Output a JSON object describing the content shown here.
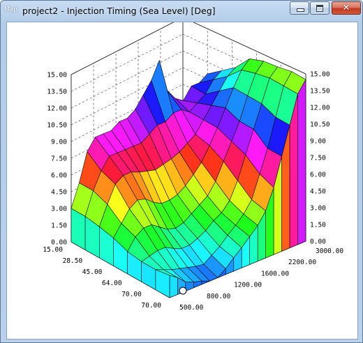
{
  "window": {
    "icon_label": "Map",
    "title": "project2 - Injection Timing (Sea Level) [Deg]",
    "controls": {
      "minimize": "minimize-icon",
      "maximize": "maximize-icon",
      "close": "close-icon"
    }
  },
  "chart_data": {
    "type": "surface",
    "z_ticks": [
      "0.00",
      "1.50",
      "3.00",
      "4.50",
      "6.00",
      "7.50",
      "9.00",
      "10.50",
      "12.00",
      "13.50",
      "15.00"
    ],
    "load_ticks": [
      "15.00",
      "28.50",
      "45.00",
      "64.00",
      "70.00",
      "70.00"
    ],
    "rpm_ticks": [
      "500.00",
      "800.00",
      "1200.00",
      "1600.00",
      "2200.00",
      "3000.00"
    ],
    "zlim": [
      0,
      15
    ],
    "grid": true,
    "colormap": "hue: blue (low) to magenta (high)",
    "z": [
      [
        3.0,
        5.0,
        7.5,
        8.5,
        8.5,
        8.5,
        9.0,
        9.0,
        9.5,
        10.5,
        11.5,
        13.0,
        10.0,
        9.0,
        8.5,
        9.5,
        9.5,
        10.0
      ],
      [
        3.0,
        5.0,
        6.5,
        7.5,
        7.5,
        7.5,
        7.5,
        7.5,
        8.0,
        8.5,
        8.5,
        9.0,
        9.0,
        8.5,
        9.0,
        9.5,
        10.5,
        11.0
      ],
      [
        2.8,
        4.5,
        6.0,
        6.5,
        6.5,
        6.2,
        6.0,
        5.8,
        6.0,
        6.2,
        6.5,
        7.0,
        7.5,
        8.5,
        9.5,
        10.5,
        11.5,
        12.0
      ],
      [
        2.5,
        3.5,
        4.5,
        5.0,
        4.8,
        4.2,
        3.8,
        3.8,
        4.0,
        4.5,
        5.2,
        6.0,
        7.2,
        8.5,
        10.0,
        11.5,
        12.8,
        13.5
      ],
      [
        2.0,
        3.0,
        3.5,
        3.5,
        3.0,
        2.5,
        2.3,
        2.5,
        3.0,
        3.5,
        4.0,
        5.0,
        6.5,
        8.0,
        9.5,
        11.5,
        13.2,
        14.0
      ],
      [
        1.8,
        2.0,
        2.2,
        2.2,
        1.8,
        1.5,
        1.5,
        1.8,
        2.2,
        2.8,
        3.2,
        4.0,
        5.5,
        7.5,
        9.5,
        11.5,
        13.5,
        14.2
      ],
      [
        1.8,
        1.5,
        1.2,
        1.0,
        0.8,
        0.6,
        0.5,
        1.0,
        1.5,
        2.2,
        2.8,
        3.5,
        4.5,
        6.5,
        8.5,
        11.0,
        13.5,
        14.5
      ],
      [
        2.0,
        1.5,
        0.8,
        0.5,
        0.3,
        0.0,
        0.0,
        0.5,
        1.2,
        1.8,
        2.5,
        3.2,
        4.2,
        6.0,
        8.5,
        11.0,
        13.5,
        14.5
      ]
    ]
  }
}
